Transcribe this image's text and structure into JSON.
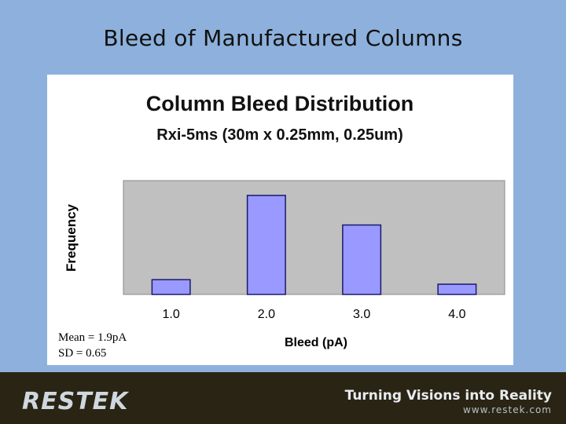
{
  "slide": {
    "title": "Bleed of Manufactured Columns"
  },
  "colors": {
    "background": "#8db1dc",
    "plot_area": "#c0c0c0",
    "bar_fill": "#9999ff",
    "bar_stroke": "#1a1a6e",
    "footer": "#2a2414"
  },
  "chart_data": {
    "type": "bar",
    "title": "Column Bleed Distribution",
    "subtitle": "Rxi-5ms (30m x 0.25mm, 0.25um)",
    "xlabel": "Bleed (pA)",
    "ylabel": "Frequency",
    "categories": [
      "1.0",
      "2.0",
      "3.0",
      "4.0"
    ],
    "values": [
      13,
      87,
      61,
      9
    ],
    "ylim": [
      0,
      100
    ],
    "grid": false,
    "legend": "none"
  },
  "stats": {
    "mean": "Mean = 1.9pA",
    "sd": "SD = 0.65"
  },
  "footer": {
    "logo_text": "RESTEK",
    "tagline": "Turning Visions into Reality",
    "website": "www.restek.com"
  }
}
